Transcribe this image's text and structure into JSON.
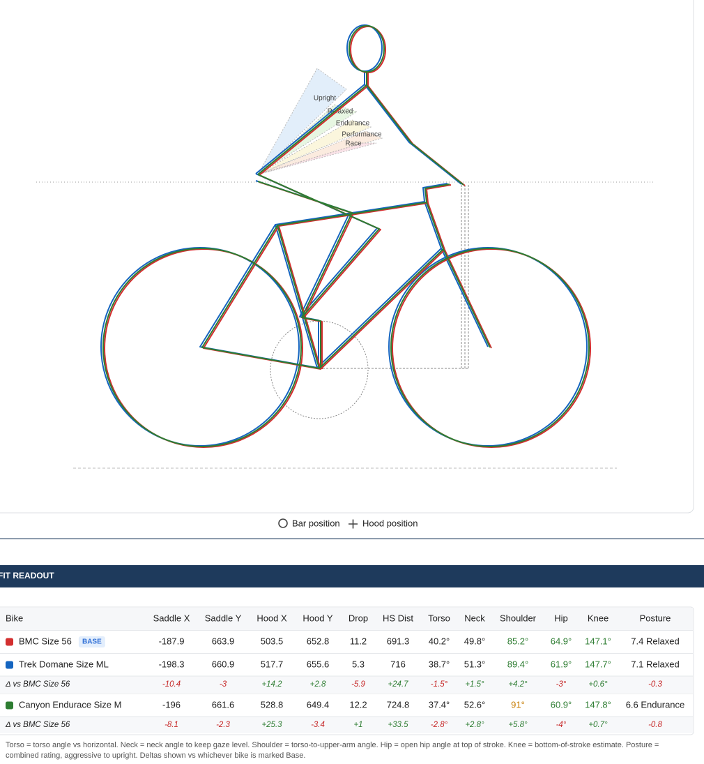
{
  "diagram": {
    "zones": [
      "Upright",
      "Relaxed",
      "Endurance",
      "Performance",
      "Race"
    ]
  },
  "legend": [
    "Bar position",
    "Hood position"
  ],
  "readout": {
    "title": "FIT READOUT",
    "columns": [
      "Bike",
      "Saddle X",
      "Saddle Y",
      "Hood X",
      "Hood Y",
      "Drop",
      "HS Dist",
      "Torso",
      "Neck",
      "Shoulder",
      "Hip",
      "Knee",
      "Posture"
    ],
    "rows": [
      {
        "name": "BMC Size 56",
        "color": "#d32f2f",
        "badge": "BASE",
        "cells": [
          "-187.9",
          "663.9",
          "503.5",
          "652.8",
          "11.2",
          "691.3",
          "40.2°",
          "49.8°",
          "85.2°",
          "64.9°",
          "147.1°",
          "7.4 Relaxed"
        ]
      },
      {
        "name": "Trek Domane Size ML",
        "color": "#1565c0",
        "cells": [
          "-198.3",
          "660.9",
          "517.7",
          "655.6",
          "5.3",
          "716",
          "38.7°",
          "51.3°",
          "89.4°",
          "61.9°",
          "147.7°",
          "7.1 Relaxed"
        ]
      },
      {
        "delta": "Δ vs BMC Size 56",
        "cells": [
          "-10.4",
          "-3",
          "+14.2",
          "+2.8",
          "-5.9",
          "+24.7",
          "-1.5°",
          "+1.5°",
          "+4.2°",
          "-3°",
          "+0.6°",
          "-0.3"
        ]
      },
      {
        "name": "Canyon Endurace Size M",
        "color": "#2e7d32",
        "cells": [
          "-196",
          "661.6",
          "528.8",
          "649.4",
          "12.2",
          "724.8",
          "37.4°",
          "52.6°",
          "91°",
          "60.9°",
          "147.8°",
          "6.6 Endurance"
        ]
      },
      {
        "delta": "Δ vs BMC Size 56",
        "cells": [
          "-8.1",
          "-2.3",
          "+25.3",
          "-3.4",
          "+1",
          "+33.5",
          "-2.8°",
          "+2.8°",
          "+5.8°",
          "-4°",
          "+0.7°",
          "-0.8"
        ]
      }
    ],
    "note": "Torso = torso angle vs horizontal. Neck = neck angle to keep gaze level. Shoulder = torso-to-upper-arm angle. Hip = open hip angle at top of stroke. Knee = bottom-of-stroke estimate. Posture = combined rating, aggressive to upright. Deltas shown vs whichever bike is marked Base."
  }
}
